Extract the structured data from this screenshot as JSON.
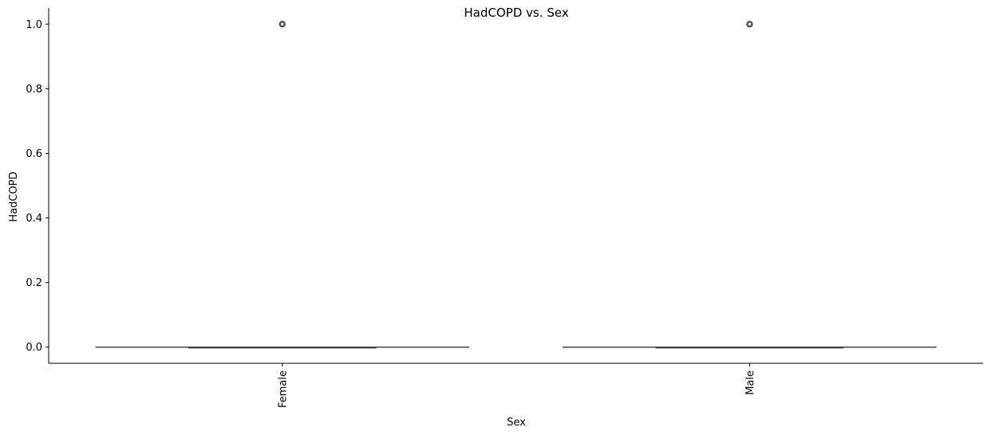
{
  "chart_data": {
    "type": "box",
    "title": "HadCOPD vs. Sex",
    "xlabel": "Sex",
    "ylabel": "HadCOPD",
    "categories": [
      "Female",
      "Male"
    ],
    "ylim": [
      -0.05,
      1.05
    ],
    "yticks": [
      0.0,
      0.2,
      0.4,
      0.6,
      0.8,
      1.0
    ],
    "ytick_labels": [
      "0.0",
      "0.2",
      "0.4",
      "0.6",
      "0.8",
      "1.0"
    ],
    "boxes": [
      {
        "category": "Female",
        "whisker_low": 0.0,
        "q1": 0.0,
        "median": 0.0,
        "q3": 0.0,
        "whisker_high": 0.0,
        "outliers": [
          1.0
        ]
      },
      {
        "category": "Male",
        "whisker_low": 0.0,
        "q1": 0.0,
        "median": 0.0,
        "q3": 0.0,
        "whisker_high": 0.0,
        "outliers": [
          1.0
        ]
      }
    ],
    "x_tick_rotation": 90,
    "grid": false,
    "colors": {
      "box_line": "#3f3f3f",
      "axis": "#000000"
    }
  }
}
